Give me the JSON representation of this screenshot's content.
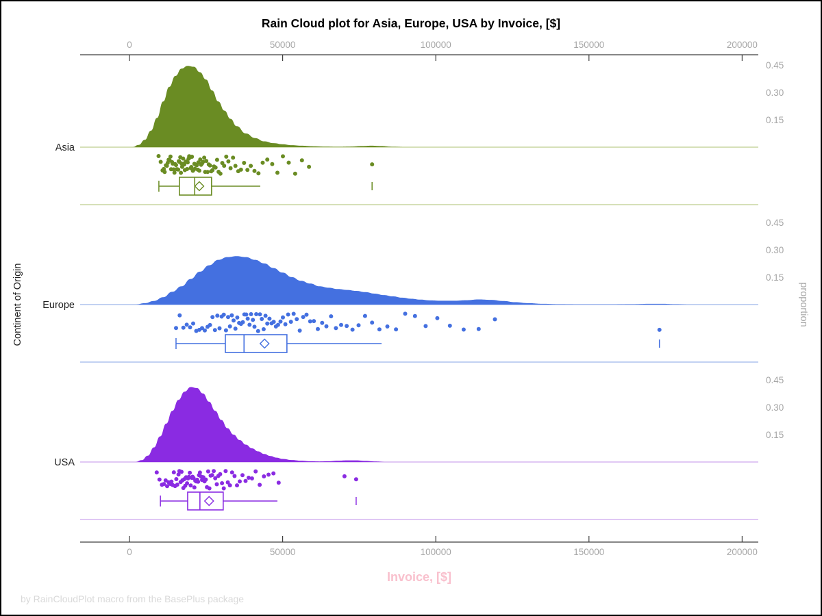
{
  "title": "Rain Cloud plot for Asia, Europe, USA by Invoice, [$]",
  "footer": "by RainCloudPlot macro from the BasePlus package",
  "colors": {
    "title": "#000000",
    "axis_line": "#3F3F3F",
    "axis_tick_label": "#A6A6A6",
    "x_title_pink": "#F9C0CD",
    "footer_gray": "#D9D9D9",
    "left_label": "#222222",
    "right_label": "#A6A6A6"
  },
  "chart_data": {
    "type": "raincloud",
    "title": "Rain Cloud plot for Asia, Europe, USA by Invoice, [$]",
    "xlabel": "Invoice, [$]",
    "ylabel_left": "Continent of Origin",
    "ylabel_right": "proportion",
    "xlim": [
      -16000,
      205000
    ],
    "x_ticks": [
      0,
      50000,
      100000,
      150000,
      200000
    ],
    "x_tick_labels": [
      "0",
      "50000",
      "100000",
      "150000",
      "200000"
    ],
    "proportion_ticks": [
      0.45,
      0.3,
      0.15
    ],
    "grid": false,
    "legend": "none",
    "groups": [
      {
        "name": "Asia",
        "color": "#6A8C23",
        "light_color": "#C9D5A0",
        "density": [
          [
            1000,
            0
          ],
          [
            3000,
            0.012
          ],
          [
            5000,
            0.04
          ],
          [
            7000,
            0.09
          ],
          [
            9000,
            0.16
          ],
          [
            11000,
            0.25
          ],
          [
            13000,
            0.33
          ],
          [
            15000,
            0.39
          ],
          [
            17000,
            0.43
          ],
          [
            19000,
            0.445
          ],
          [
            21000,
            0.44
          ],
          [
            23000,
            0.41
          ],
          [
            25000,
            0.37
          ],
          [
            27000,
            0.31
          ],
          [
            29000,
            0.25
          ],
          [
            31000,
            0.2
          ],
          [
            33000,
            0.155
          ],
          [
            35000,
            0.115
          ],
          [
            38000,
            0.075
          ],
          [
            41000,
            0.05
          ],
          [
            44000,
            0.032
          ],
          [
            47000,
            0.022
          ],
          [
            50000,
            0.016
          ],
          [
            53000,
            0.011
          ],
          [
            56000,
            0.008
          ],
          [
            60000,
            0.005
          ],
          [
            64000,
            0.003
          ],
          [
            68000,
            0.002
          ],
          [
            72000,
            0.003
          ],
          [
            76000,
            0.006
          ],
          [
            79000,
            0.008
          ],
          [
            82000,
            0.006
          ],
          [
            86000,
            0.002
          ],
          [
            90000,
            0
          ]
        ],
        "scatter": [
          9500,
          10200,
          10800,
          11200,
          11500,
          11900,
          12200,
          12500,
          12800,
          13100,
          13400,
          13600,
          13900,
          14100,
          14400,
          14700,
          14900,
          15200,
          15400,
          15600,
          15900,
          16100,
          16300,
          16600,
          16800,
          17000,
          17200,
          17500,
          17700,
          17900,
          18100,
          18400,
          18600,
          18800,
          19000,
          19300,
          19500,
          19700,
          20000,
          20200,
          20400,
          20700,
          20900,
          21200,
          21400,
          21700,
          22000,
          22300,
          22500,
          22800,
          23100,
          23400,
          23700,
          24000,
          24400,
          24700,
          25100,
          25500,
          25900,
          26300,
          26700,
          27100,
          27600,
          28100,
          28600,
          29100,
          29700,
          30300,
          30900,
          31600,
          32300,
          33000,
          33800,
          34600,
          35500,
          36400,
          37400,
          38500,
          39600,
          40800,
          42100,
          43500,
          45000,
          46600,
          48300,
          50100,
          52000,
          54100,
          56300,
          58600,
          79200
        ],
        "box": {
          "whisker_low": 9600,
          "q1": 16300,
          "median": 21300,
          "q3": 26800,
          "whisker_high": 42700,
          "mean": 22800,
          "far_outlier": 79200
        }
      },
      {
        "name": "Europe",
        "color": "#4470E0",
        "light_color": "#ADC2EE",
        "density": [
          [
            2000,
            0
          ],
          [
            5000,
            0.008
          ],
          [
            8000,
            0.02
          ],
          [
            11000,
            0.04
          ],
          [
            14000,
            0.07
          ],
          [
            17000,
            0.1
          ],
          [
            20000,
            0.14
          ],
          [
            23000,
            0.18
          ],
          [
            26000,
            0.215
          ],
          [
            29000,
            0.245
          ],
          [
            32000,
            0.26
          ],
          [
            35000,
            0.265
          ],
          [
            38000,
            0.26
          ],
          [
            41000,
            0.245
          ],
          [
            44000,
            0.225
          ],
          [
            47000,
            0.2
          ],
          [
            50000,
            0.175
          ],
          [
            53000,
            0.15
          ],
          [
            56000,
            0.13
          ],
          [
            59000,
            0.115
          ],
          [
            62000,
            0.1
          ],
          [
            65000,
            0.092
          ],
          [
            68000,
            0.085
          ],
          [
            71000,
            0.08
          ],
          [
            74000,
            0.075
          ],
          [
            77000,
            0.068
          ],
          [
            80000,
            0.06
          ],
          [
            83000,
            0.052
          ],
          [
            86000,
            0.045
          ],
          [
            89000,
            0.038
          ],
          [
            92000,
            0.032
          ],
          [
            95000,
            0.027
          ],
          [
            98000,
            0.023
          ],
          [
            102000,
            0.021
          ],
          [
            106000,
            0.021
          ],
          [
            110000,
            0.024
          ],
          [
            114000,
            0.028
          ],
          [
            118000,
            0.026
          ],
          [
            122000,
            0.02
          ],
          [
            126000,
            0.013
          ],
          [
            130000,
            0.008
          ],
          [
            135000,
            0.004
          ],
          [
            140000,
            0.002
          ],
          [
            146000,
            0.001
          ],
          [
            152000,
            0.001
          ],
          [
            158000,
            0.001
          ],
          [
            164000,
            0.002
          ],
          [
            170000,
            0.004
          ],
          [
            174000,
            0.004
          ],
          [
            178000,
            0.002
          ],
          [
            183000,
            0
          ]
        ],
        "scatter": [
          15200,
          16400,
          17600,
          18700,
          19800,
          20800,
          21800,
          22800,
          23700,
          24600,
          25500,
          26300,
          27100,
          27900,
          28700,
          29400,
          30100,
          30800,
          31500,
          32200,
          32800,
          33400,
          34000,
          34600,
          35200,
          35800,
          36400,
          37000,
          37500,
          38100,
          38600,
          39200,
          39700,
          40300,
          40800,
          41400,
          42000,
          42600,
          43200,
          43800,
          44400,
          45000,
          45700,
          46400,
          47100,
          47800,
          48500,
          49300,
          50100,
          50900,
          51800,
          52700,
          53600,
          54600,
          55600,
          56700,
          57800,
          59000,
          60200,
          61500,
          62900,
          64300,
          65800,
          67400,
          69100,
          70900,
          72800,
          74800,
          76900,
          79200,
          81600,
          84200,
          87000,
          90000,
          93200,
          96700,
          100500,
          104600,
          109100,
          114000,
          119300,
          173000
        ],
        "box": {
          "whisker_low": 15200,
          "q1": 31300,
          "median": 37400,
          "q3": 51400,
          "whisker_high": 82300,
          "mean": 44100,
          "far_outlier": 173000
        }
      },
      {
        "name": "USA",
        "color": "#8A2BE2",
        "light_color": "#D6B6F0",
        "density": [
          [
            2000,
            0
          ],
          [
            4000,
            0.01
          ],
          [
            6000,
            0.035
          ],
          [
            8000,
            0.08
          ],
          [
            10000,
            0.14
          ],
          [
            12000,
            0.21
          ],
          [
            14000,
            0.28
          ],
          [
            16000,
            0.34
          ],
          [
            18000,
            0.385
          ],
          [
            20000,
            0.41
          ],
          [
            22000,
            0.405
          ],
          [
            24000,
            0.375
          ],
          [
            26000,
            0.33
          ],
          [
            28000,
            0.28
          ],
          [
            30000,
            0.23
          ],
          [
            32000,
            0.185
          ],
          [
            34000,
            0.15
          ],
          [
            36000,
            0.12
          ],
          [
            38000,
            0.095
          ],
          [
            40000,
            0.075
          ],
          [
            42000,
            0.058
          ],
          [
            44000,
            0.044
          ],
          [
            46000,
            0.033
          ],
          [
            48000,
            0.024
          ],
          [
            50000,
            0.017
          ],
          [
            53000,
            0.011
          ],
          [
            56000,
            0.007
          ],
          [
            59000,
            0.004
          ],
          [
            62000,
            0.003
          ],
          [
            65000,
            0.004
          ],
          [
            68000,
            0.007
          ],
          [
            71000,
            0.009
          ],
          [
            74000,
            0.009
          ],
          [
            77000,
            0.006
          ],
          [
            80000,
            0.003
          ],
          [
            84000,
            0
          ]
        ],
        "scatter": [
          8900,
          9800,
          10600,
          11200,
          11800,
          12300,
          12800,
          13300,
          13700,
          14100,
          14500,
          14900,
          15300,
          15600,
          16000,
          16300,
          16700,
          17000,
          17300,
          17600,
          17900,
          18200,
          18500,
          18800,
          19100,
          19400,
          19700,
          20000,
          20300,
          20600,
          20900,
          21200,
          21500,
          21800,
          22100,
          22400,
          22700,
          23000,
          23400,
          23700,
          24100,
          24500,
          24900,
          25300,
          25700,
          26100,
          26500,
          27000,
          27500,
          28000,
          28500,
          29000,
          29600,
          30200,
          30800,
          31400,
          32100,
          32800,
          33500,
          34300,
          35100,
          36000,
          36900,
          37900,
          38900,
          40000,
          41200,
          42500,
          43900,
          45400,
          47000,
          48700,
          70200,
          74000
        ],
        "box": {
          "whisker_low": 10100,
          "q1": 19000,
          "median": 23000,
          "q3": 30600,
          "whisker_high": 48300,
          "mean": 26000,
          "far_outlier": 74000
        }
      }
    ]
  }
}
